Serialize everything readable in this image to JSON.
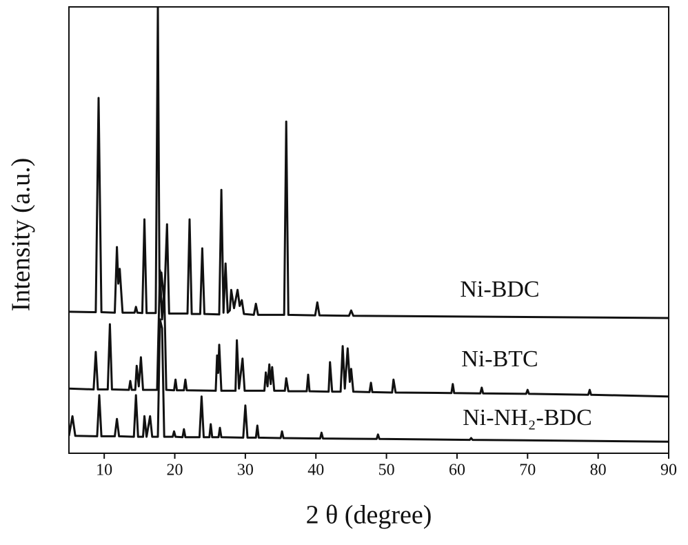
{
  "chart_data": {
    "type": "line",
    "xlabel": "2 θ (degree)",
    "ylabel": "Intensity (a.u.)",
    "xlim": [
      5,
      90
    ],
    "ylim": [
      0,
      100
    ],
    "xticks": [
      10,
      20,
      30,
      40,
      50,
      60,
      70,
      80,
      90
    ],
    "series": [
      {
        "name": "Ni-BDC",
        "color": "#111111",
        "x": [
          5,
          8.8,
          9.2,
          9.6,
          11.5,
          11.8,
          12.0,
          12.2,
          12.6,
          14.3,
          14.5,
          14.7,
          15.4,
          15.7,
          16.0,
          17.3,
          17.6,
          17.85,
          18.1,
          18.5,
          18.9,
          19.2,
          21.8,
          22.1,
          22.4,
          23.6,
          23.9,
          24.2,
          26.3,
          26.6,
          26.9,
          27.2,
          27.5,
          27.8,
          28.0,
          28.4,
          28.9,
          29.2,
          29.5,
          29.8,
          31.2,
          31.5,
          31.8,
          35.5,
          35.8,
          36.1,
          39.9,
          40.2,
          40.5,
          44.7,
          45,
          45.3,
          90
        ],
        "values": [
          31.7,
          31.6,
          79.6,
          31.6,
          31.5,
          46.2,
          38,
          41.3,
          31.5,
          31.5,
          32.8,
          31.5,
          31.4,
          52.4,
          31.4,
          31.4,
          100,
          34,
          40.5,
          34,
          51.3,
          31.3,
          31.3,
          52.4,
          31.2,
          31.2,
          45.9,
          31.2,
          31.1,
          59,
          31.5,
          42.5,
          31.5,
          32,
          36.6,
          32.5,
          36.6,
          33,
          34.3,
          31.2,
          31,
          33.5,
          31,
          31,
          74.3,
          31,
          30.9,
          33.8,
          30.9,
          30.8,
          32,
          30.8,
          30.3
        ]
      },
      {
        "name": "Ni-BTC",
        "color": "#111111",
        "x": [
          5,
          8.5,
          8.8,
          9.1,
          10.5,
          10.8,
          11.1,
          13.5,
          13.7,
          13.9,
          14.4,
          14.6,
          14.9,
          15.2,
          15.5,
          17.5,
          17.9,
          18.2,
          18.5,
          18.8,
          19.9,
          20.1,
          20.3,
          21.3,
          21.5,
          21.7,
          25.8,
          26.0,
          26.15,
          26.3,
          26.6,
          28.6,
          28.8,
          29.1,
          29.6,
          29.9,
          32.7,
          32.9,
          33.15,
          33.4,
          33.6,
          33.8,
          34.1,
          35.6,
          35.8,
          36.1,
          38.7,
          38.9,
          39.1,
          41.8,
          42,
          42.3,
          43.5,
          43.8,
          44.1,
          44.5,
          44.8,
          45,
          45.3,
          47.6,
          47.8,
          48,
          50.8,
          51,
          51.3,
          59.2,
          59.4,
          59.6,
          63.3,
          63.5,
          63.7,
          69.8,
          70,
          70.2,
          78.6,
          78.8,
          79,
          90
        ],
        "values": [
          14.5,
          14.3,
          22.7,
          14.3,
          14.3,
          28.9,
          14.3,
          14.2,
          16.2,
          14.2,
          14.2,
          19.6,
          15,
          21.5,
          14.2,
          14.2,
          41,
          30,
          36.6,
          14.2,
          14.1,
          16.5,
          14.1,
          14.1,
          16.5,
          14.1,
          14,
          21.9,
          18,
          24.3,
          14,
          14,
          25.3,
          14.5,
          21.2,
          14,
          14,
          18.1,
          15,
          19.9,
          15.5,
          19.3,
          14,
          14,
          16.8,
          13.9,
          13.9,
          17.6,
          13.9,
          13.8,
          20.4,
          13.8,
          13.8,
          24,
          14.5,
          23.5,
          16,
          18.9,
          13.8,
          13.7,
          15.8,
          13.7,
          13.6,
          16.5,
          13.6,
          13.5,
          15.5,
          13.5,
          13.4,
          14.7,
          13.4,
          13.3,
          14.2,
          13.3,
          13.1,
          14.2,
          13.1,
          12.7
        ]
      },
      {
        "name": "Ni-NH₂-BDC",
        "color": "#111111",
        "x": [
          5,
          5.5,
          5.9,
          9.0,
          9.3,
          9.6,
          11.5,
          11.8,
          12.1,
          14.2,
          14.5,
          14.8,
          15.5,
          15.7,
          16.0,
          16.5,
          16.8,
          17.6,
          17.9,
          18.2,
          18.5,
          19.7,
          19.9,
          20.1,
          21.1,
          21.3,
          21.5,
          23.5,
          23.8,
          24.1,
          24.9,
          25.1,
          25.3,
          26.2,
          26.4,
          26.6,
          29.7,
          30,
          30.3,
          31.5,
          31.7,
          31.9,
          35,
          35.2,
          35.4,
          40.6,
          40.8,
          41,
          48.6,
          48.8,
          49,
          61.8,
          62,
          62.2,
          90
        ],
        "values": [
          3.9,
          8.3,
          3.9,
          3.8,
          13,
          3.8,
          3.8,
          7.7,
          3.8,
          3.7,
          13,
          3.7,
          3.7,
          8.3,
          3.7,
          8.3,
          3.7,
          3.7,
          30,
          28,
          3.7,
          3.7,
          4.9,
          3.7,
          3.6,
          5.4,
          3.6,
          3.6,
          12.7,
          3.6,
          3.6,
          6.5,
          3.6,
          3.6,
          5.7,
          3.6,
          3.5,
          10.7,
          3.5,
          3.5,
          6.2,
          3.5,
          3.4,
          4.9,
          3.4,
          3.3,
          4.6,
          3.3,
          3.2,
          4.2,
          3.2,
          3,
          3.4,
          3,
          2.6
        ]
      }
    ]
  }
}
